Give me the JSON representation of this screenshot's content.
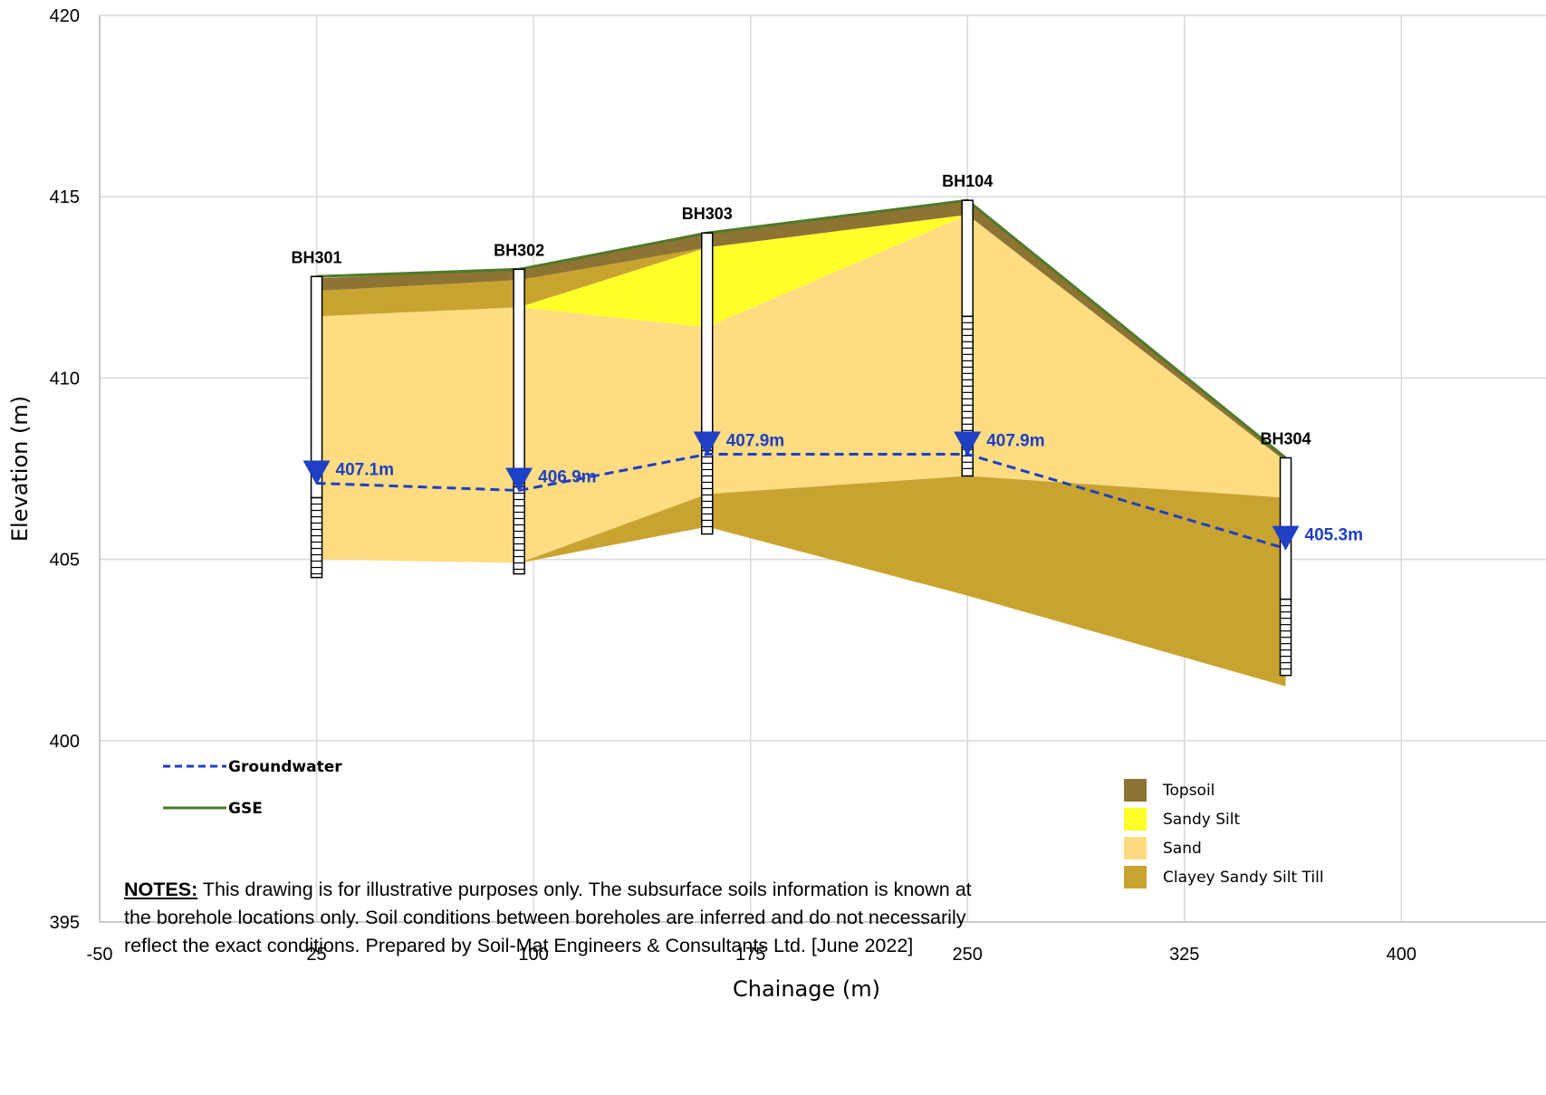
{
  "chart_data": {
    "type": "area",
    "xlabel": "Chainage (m)",
    "ylabel": "Elevation (m)",
    "xlim": [
      -50,
      450
    ],
    "ylim": [
      395,
      420
    ],
    "x_ticks": [
      "-50",
      "25",
      "100",
      "175",
      "250",
      "325",
      "400"
    ],
    "y_ticks": [
      "395",
      "400",
      "405",
      "410",
      "415",
      "420"
    ],
    "grid": true,
    "boreholes": [
      {
        "name": "BH301",
        "x": 25,
        "top": 412.8,
        "bottom": 404.5,
        "screen_top": 406.7,
        "gw": 407.1,
        "gw_label": "407.1m"
      },
      {
        "name": "BH302",
        "x": 95,
        "top": 413.0,
        "bottom": 404.6,
        "screen_top": 407.0,
        "gw": 406.9,
        "gw_label": "406.9m"
      },
      {
        "name": "BH303",
        "x": 160,
        "top": 414.0,
        "bottom": 405.7,
        "screen_top": 408.0,
        "gw": 407.9,
        "gw_label": "407.9m"
      },
      {
        "name": "BH104",
        "x": 250,
        "top": 414.9,
        "bottom": 407.3,
        "screen_top": 411.7,
        "gw": 407.9,
        "gw_label": "407.9m"
      },
      {
        "name": "BH304",
        "x": 360,
        "top": 407.8,
        "bottom": 401.8,
        "screen_top": 403.9,
        "gw": 405.3,
        "gw_label": "405.3m"
      }
    ],
    "series": [
      {
        "name": "Groundwater",
        "x": [
          25,
          95,
          160,
          250,
          360
        ],
        "y": [
          407.1,
          406.9,
          407.9,
          407.9,
          405.3
        ],
        "color": "#1f3fc4",
        "style": "dashed"
      },
      {
        "name": "GSE",
        "x": [
          25,
          95,
          160,
          250,
          360
        ],
        "y": [
          412.8,
          413.0,
          414.0,
          414.9,
          407.8
        ],
        "color": "#4e7a2a",
        "style": "solid"
      }
    ],
    "layers": [
      {
        "name": "Topsoil",
        "color": "#8d7433",
        "polygons": [
          [
            [
              25,
              412.75
            ],
            [
              95,
              413.0
            ],
            [
              160,
              414.0
            ],
            [
              250,
              414.9
            ],
            [
              360,
              407.8
            ],
            [
              360,
              407.7
            ],
            [
              250,
              414.5
            ],
            [
              160,
              413.6
            ],
            [
              95,
              412.7
            ],
            [
              25,
              412.4
            ]
          ]
        ]
      },
      {
        "name": "Sandy Silt",
        "color": "#ffff2a",
        "polygons": [
          [
            [
              95,
              411.95
            ],
            [
              160,
              413.6
            ],
            [
              250,
              414.5
            ],
            [
              160,
              411.4
            ]
          ]
        ]
      },
      {
        "name": "Sand",
        "color": "#fddc82",
        "polygons": [
          [
            [
              25,
              411.7
            ],
            [
              95,
              411.95
            ],
            [
              160,
              411.4
            ],
            [
              250,
              414.5
            ],
            [
              360,
              407.7
            ],
            [
              360,
              406.7
            ],
            [
              250,
              407.3
            ],
            [
              160,
              406.8
            ],
            [
              95,
              404.9
            ],
            [
              25,
              405.0
            ]
          ]
        ]
      },
      {
        "name": "Clayey Sandy Silt Till",
        "color": "#c9a330",
        "polygons": [
          [
            [
              25,
              412.4
            ],
            [
              95,
              412.7
            ],
            [
              160,
              413.6
            ],
            [
              95,
              411.95
            ],
            [
              25,
              411.7
            ]
          ],
          [
            [
              95,
              404.9
            ],
            [
              160,
              406.8
            ],
            [
              250,
              407.3
            ],
            [
              360,
              406.7
            ],
            [
              360,
              401.5
            ],
            [
              250,
              404.0
            ],
            [
              160,
              405.9
            ]
          ]
        ]
      }
    ],
    "legend": {
      "lines": [
        "Groundwater",
        "GSE"
      ],
      "soils": [
        "Topsoil",
        "Sandy Silt",
        "Sand",
        "Clayey Sandy Silt Till"
      ],
      "placement": "bottom-right"
    }
  },
  "notes": {
    "lead": "NOTES:",
    "body": " This drawing is for illustrative purposes only.  The subsurface soils information is known at the borehole locations only.  Soil conditions between boreholes are inferred and do not necessarily reflect the exact conditions.  Prepared by Soil-Mat Engineers & Consultants Ltd. [June 2022]"
  }
}
